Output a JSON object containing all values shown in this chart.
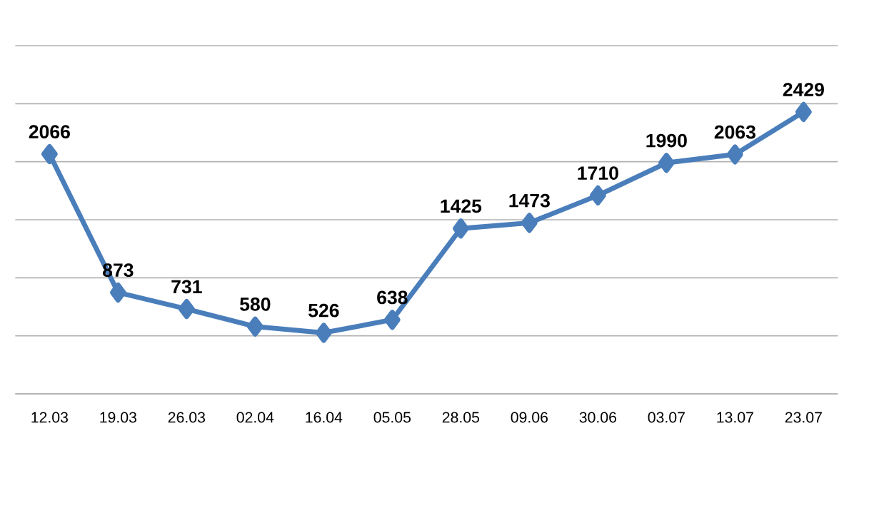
{
  "chart_data": {
    "type": "line",
    "categories": [
      "12.03",
      "19.03",
      "26.03",
      "02.04",
      "16.04",
      "05.05",
      "28.05",
      "09.06",
      "30.06",
      "03.07",
      "13.07",
      "23.07"
    ],
    "series": [
      {
        "color": "#4a7ebb",
        "values": [
          2066,
          873,
          731,
          580,
          526,
          638,
          1425,
          1473,
          1710,
          1990,
          2063,
          2429
        ]
      }
    ],
    "ylim": [
      0,
      3000
    ],
    "yticks": [
      {
        "value": 0,
        "label": null
      },
      {
        "value": 500,
        "label": null
      },
      {
        "value": 1000,
        "label": null
      },
      {
        "value": 1500,
        "label": null
      },
      {
        "value": 2000,
        "label": null
      },
      {
        "value": 2500,
        "label": null
      },
      {
        "value": 3000,
        "label": null
      }
    ],
    "grid": "y",
    "tick_labels": "x",
    "data_labels": true,
    "marker": "diamond",
    "line_style": "solid"
  }
}
